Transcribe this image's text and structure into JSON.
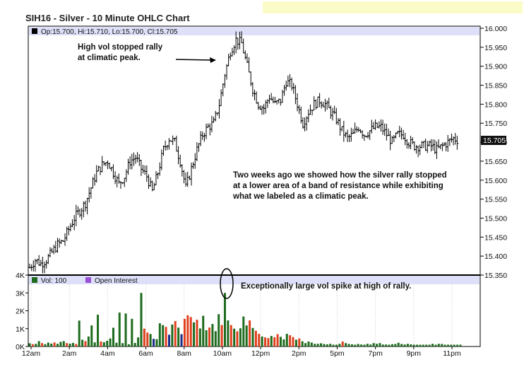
{
  "title": "SIH16 - Silver - 10 Minute OHLC Chart",
  "price_legend": "Op:15.700, Hi:15.710, Lo:15.700, Cl:15.705",
  "volume_legend": {
    "vol": "Vol: 100",
    "oi": "Open Interest"
  },
  "annotations": {
    "peak_line1": "High vol stopped rally",
    "peak_line2": "at climatic peak.",
    "note_line1": "Two weeks ago we showed how the silver rally stopped",
    "note_line2": "at a lower area of a band of resistance while exhibiting",
    "note_line3": "what we labeled as a climatic peak.",
    "spike": "Exceptionally large vol spike at high of rally."
  },
  "colors": {
    "up_volume": "#1e6b1e",
    "down_volume": "#e0401e",
    "neutral_volume": "#1a2a8a",
    "legend_band": "#dde0f8",
    "highlight_box": "#fbfbc8",
    "last_price_bg": "#111111"
  },
  "chart_data": [
    {
      "type": "ohlc",
      "y_ticks": [
        "16.000",
        "15.950",
        "15.900",
        "15.850",
        "15.800",
        "15.750",
        "15.700",
        "15.650",
        "15.600",
        "15.550",
        "15.500",
        "15.450",
        "15.400",
        "15.350"
      ],
      "ylim": [
        15.35,
        16.0
      ],
      "last_price": "15.705",
      "x_ticks": [
        "12am",
        "2am",
        "4am",
        "6am",
        "8am",
        "10am",
        "12pm",
        "2pm",
        "5pm",
        "7pm",
        "9pm",
        "11pm"
      ],
      "close_path": [
        15.37,
        15.39,
        15.38,
        15.39,
        15.41,
        15.43,
        15.44,
        15.47,
        15.5,
        15.52,
        15.54,
        15.58,
        15.62,
        15.64,
        15.65,
        15.62,
        15.59,
        15.61,
        15.65,
        15.66,
        15.63,
        15.61,
        15.57,
        15.62,
        15.68,
        15.71,
        15.7,
        15.65,
        15.58,
        15.63,
        15.68,
        15.72,
        15.74,
        15.75,
        15.8,
        15.88,
        15.94,
        15.97,
        15.96,
        15.9,
        15.84,
        15.8,
        15.79,
        15.82,
        15.8,
        15.81,
        15.86,
        15.85,
        15.8,
        15.75,
        15.78,
        15.8,
        15.81,
        15.8,
        15.78,
        15.76,
        15.73,
        15.71,
        15.72,
        15.74,
        15.72,
        15.73,
        15.74,
        15.74,
        15.72,
        15.7,
        15.72,
        15.72,
        15.7,
        15.69,
        15.69,
        15.69,
        15.69,
        15.68,
        15.69,
        15.7,
        15.71,
        15.705
      ]
    },
    {
      "type": "bar",
      "y_ticks": [
        "4K",
        "3K",
        "2K",
        "1K",
        "0K"
      ],
      "ylim": [
        0,
        4000
      ],
      "volume_bars": [
        {
          "v": 180,
          "c": "up"
        },
        {
          "v": 130,
          "c": "down"
        },
        {
          "v": 150,
          "c": "up"
        },
        {
          "v": 300,
          "c": "up"
        },
        {
          "v": 190,
          "c": "down"
        },
        {
          "v": 130,
          "c": "up"
        },
        {
          "v": 220,
          "c": "up"
        },
        {
          "v": 160,
          "c": "up"
        },
        {
          "v": 230,
          "c": "down"
        },
        {
          "v": 150,
          "c": "up"
        },
        {
          "v": 260,
          "c": "up"
        },
        {
          "v": 300,
          "c": "up"
        },
        {
          "v": 190,
          "c": "down"
        },
        {
          "v": 160,
          "c": "up"
        },
        {
          "v": 200,
          "c": "up"
        },
        {
          "v": 140,
          "c": "down"
        },
        {
          "v": 1450,
          "c": "up"
        },
        {
          "v": 380,
          "c": "up"
        },
        {
          "v": 300,
          "c": "down"
        },
        {
          "v": 560,
          "c": "up"
        },
        {
          "v": 1180,
          "c": "up"
        },
        {
          "v": 230,
          "c": "up"
        },
        {
          "v": 1780,
          "c": "up"
        },
        {
          "v": 280,
          "c": "down"
        },
        {
          "v": 240,
          "c": "up"
        },
        {
          "v": 320,
          "c": "up"
        },
        {
          "v": 450,
          "c": "up"
        },
        {
          "v": 1050,
          "c": "up"
        },
        {
          "v": 210,
          "c": "up"
        },
        {
          "v": 1900,
          "c": "up"
        },
        {
          "v": 190,
          "c": "up"
        },
        {
          "v": 1850,
          "c": "up"
        },
        {
          "v": 120,
          "c": "up"
        },
        {
          "v": 1550,
          "c": "up"
        },
        {
          "v": 200,
          "c": "up"
        },
        {
          "v": 510,
          "c": "up"
        },
        {
          "v": 3000,
          "c": "up"
        },
        {
          "v": 1000,
          "c": "down"
        },
        {
          "v": 780,
          "c": "down"
        },
        {
          "v": 700,
          "c": "up"
        },
        {
          "v": 430,
          "c": "neutral"
        },
        {
          "v": 410,
          "c": "up"
        },
        {
          "v": 1300,
          "c": "up"
        },
        {
          "v": 1200,
          "c": "up"
        },
        {
          "v": 1100,
          "c": "down"
        },
        {
          "v": 660,
          "c": "neutral"
        },
        {
          "v": 1230,
          "c": "up"
        },
        {
          "v": 1420,
          "c": "down"
        },
        {
          "v": 1060,
          "c": "up"
        },
        {
          "v": 690,
          "c": "neutral"
        },
        {
          "v": 1550,
          "c": "down"
        },
        {
          "v": 1750,
          "c": "down"
        },
        {
          "v": 1650,
          "c": "down"
        },
        {
          "v": 1350,
          "c": "up"
        },
        {
          "v": 1500,
          "c": "down"
        },
        {
          "v": 1010,
          "c": "up"
        },
        {
          "v": 1720,
          "c": "up"
        },
        {
          "v": 910,
          "c": "up"
        },
        {
          "v": 1060,
          "c": "down"
        },
        {
          "v": 1260,
          "c": "up"
        },
        {
          "v": 860,
          "c": "up"
        },
        {
          "v": 1810,
          "c": "up"
        },
        {
          "v": 1200,
          "c": "down"
        },
        {
          "v": 3000,
          "c": "up"
        },
        {
          "v": 1460,
          "c": "up"
        },
        {
          "v": 1200,
          "c": "down"
        },
        {
          "v": 1000,
          "c": "up"
        },
        {
          "v": 850,
          "c": "down"
        },
        {
          "v": 1020,
          "c": "up"
        },
        {
          "v": 1680,
          "c": "up"
        },
        {
          "v": 1180,
          "c": "up"
        },
        {
          "v": 1460,
          "c": "down"
        },
        {
          "v": 1040,
          "c": "up"
        },
        {
          "v": 880,
          "c": "down"
        },
        {
          "v": 710,
          "c": "down"
        },
        {
          "v": 560,
          "c": "up"
        },
        {
          "v": 510,
          "c": "down"
        },
        {
          "v": 470,
          "c": "down"
        },
        {
          "v": 590,
          "c": "up"
        },
        {
          "v": 520,
          "c": "down"
        },
        {
          "v": 690,
          "c": "down"
        },
        {
          "v": 540,
          "c": "up"
        },
        {
          "v": 400,
          "c": "up"
        },
        {
          "v": 710,
          "c": "up"
        },
        {
          "v": 630,
          "c": "down"
        },
        {
          "v": 530,
          "c": "down"
        },
        {
          "v": 380,
          "c": "up"
        },
        {
          "v": 450,
          "c": "down"
        },
        {
          "v": 290,
          "c": "up"
        },
        {
          "v": 190,
          "c": "up"
        },
        {
          "v": 280,
          "c": "up"
        },
        {
          "v": 220,
          "c": "up"
        },
        {
          "v": 150,
          "c": "up"
        },
        {
          "v": 150,
          "c": "up"
        },
        {
          "v": 180,
          "c": "up"
        },
        {
          "v": 140,
          "c": "up"
        },
        {
          "v": 120,
          "c": "up"
        },
        {
          "v": 150,
          "c": "up"
        },
        {
          "v": 100,
          "c": "up"
        },
        {
          "v": 100,
          "c": "up"
        },
        {
          "v": 150,
          "c": "up"
        },
        {
          "v": 280,
          "c": "down"
        },
        {
          "v": 190,
          "c": "up"
        },
        {
          "v": 140,
          "c": "up"
        },
        {
          "v": 120,
          "c": "up"
        },
        {
          "v": 100,
          "c": "up"
        },
        {
          "v": 140,
          "c": "up"
        },
        {
          "v": 110,
          "c": "up"
        },
        {
          "v": 100,
          "c": "up"
        },
        {
          "v": 150,
          "c": "up"
        },
        {
          "v": 110,
          "c": "up"
        },
        {
          "v": 190,
          "c": "up"
        },
        {
          "v": 150,
          "c": "up"
        },
        {
          "v": 190,
          "c": "up"
        },
        {
          "v": 110,
          "c": "up"
        },
        {
          "v": 110,
          "c": "up"
        },
        {
          "v": 100,
          "c": "up"
        },
        {
          "v": 130,
          "c": "up"
        },
        {
          "v": 140,
          "c": "up"
        },
        {
          "v": 210,
          "c": "up"
        },
        {
          "v": 140,
          "c": "up"
        },
        {
          "v": 110,
          "c": "up"
        },
        {
          "v": 150,
          "c": "up"
        },
        {
          "v": 120,
          "c": "up"
        },
        {
          "v": 100,
          "c": "up"
        },
        {
          "v": 100,
          "c": "up"
        },
        {
          "v": 100,
          "c": "up"
        },
        {
          "v": 100,
          "c": "up"
        },
        {
          "v": 100,
          "c": "up"
        },
        {
          "v": 100,
          "c": "up"
        },
        {
          "v": 150,
          "c": "up"
        },
        {
          "v": 100,
          "c": "up"
        },
        {
          "v": 150,
          "c": "up"
        },
        {
          "v": 140,
          "c": "up"
        },
        {
          "v": 100,
          "c": "up"
        },
        {
          "v": 100,
          "c": "up"
        },
        {
          "v": 100,
          "c": "up"
        },
        {
          "v": 100,
          "c": "up"
        },
        {
          "v": 100,
          "c": "up"
        },
        {
          "v": 100,
          "c": "up"
        }
      ]
    }
  ]
}
